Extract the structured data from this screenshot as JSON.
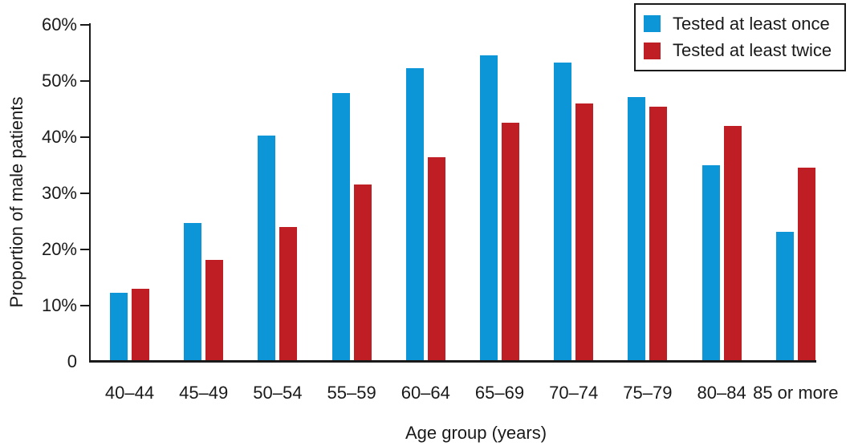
{
  "chart_data": {
    "type": "bar",
    "title": "",
    "xlabel": "Age group (years)",
    "ylabel": "Proportion of male patients",
    "categories": [
      "40–44",
      "45–49",
      "50–54",
      "55–59",
      "60–64",
      "65–69",
      "70–74",
      "75–79",
      "80–84",
      "85 or more"
    ],
    "series": [
      {
        "name": "Tested at least once",
        "color": "#0c95d7",
        "values": [
          12.2,
          24.6,
          40.2,
          47.7,
          52.1,
          54.5,
          53.1,
          47.0,
          34.9,
          23.0
        ]
      },
      {
        "name": "Tested at least twice",
        "color": "#bf1e24",
        "values": [
          12.9,
          18.0,
          23.8,
          31.5,
          36.3,
          42.5,
          45.9,
          45.3,
          41.9,
          34.5
        ]
      }
    ],
    "ylim": [
      0,
      60
    ],
    "yticks": [
      {
        "value": 0,
        "label": "0"
      },
      {
        "value": 10,
        "label": "10%"
      },
      {
        "value": 20,
        "label": "20%"
      },
      {
        "value": 30,
        "label": "30%"
      },
      {
        "value": 40,
        "label": "40%"
      },
      {
        "value": 50,
        "label": "50%"
      },
      {
        "value": 60,
        "label": "60%"
      }
    ],
    "grid": false,
    "legend_position": "top-right",
    "axis_color": "#1a1a1a"
  }
}
